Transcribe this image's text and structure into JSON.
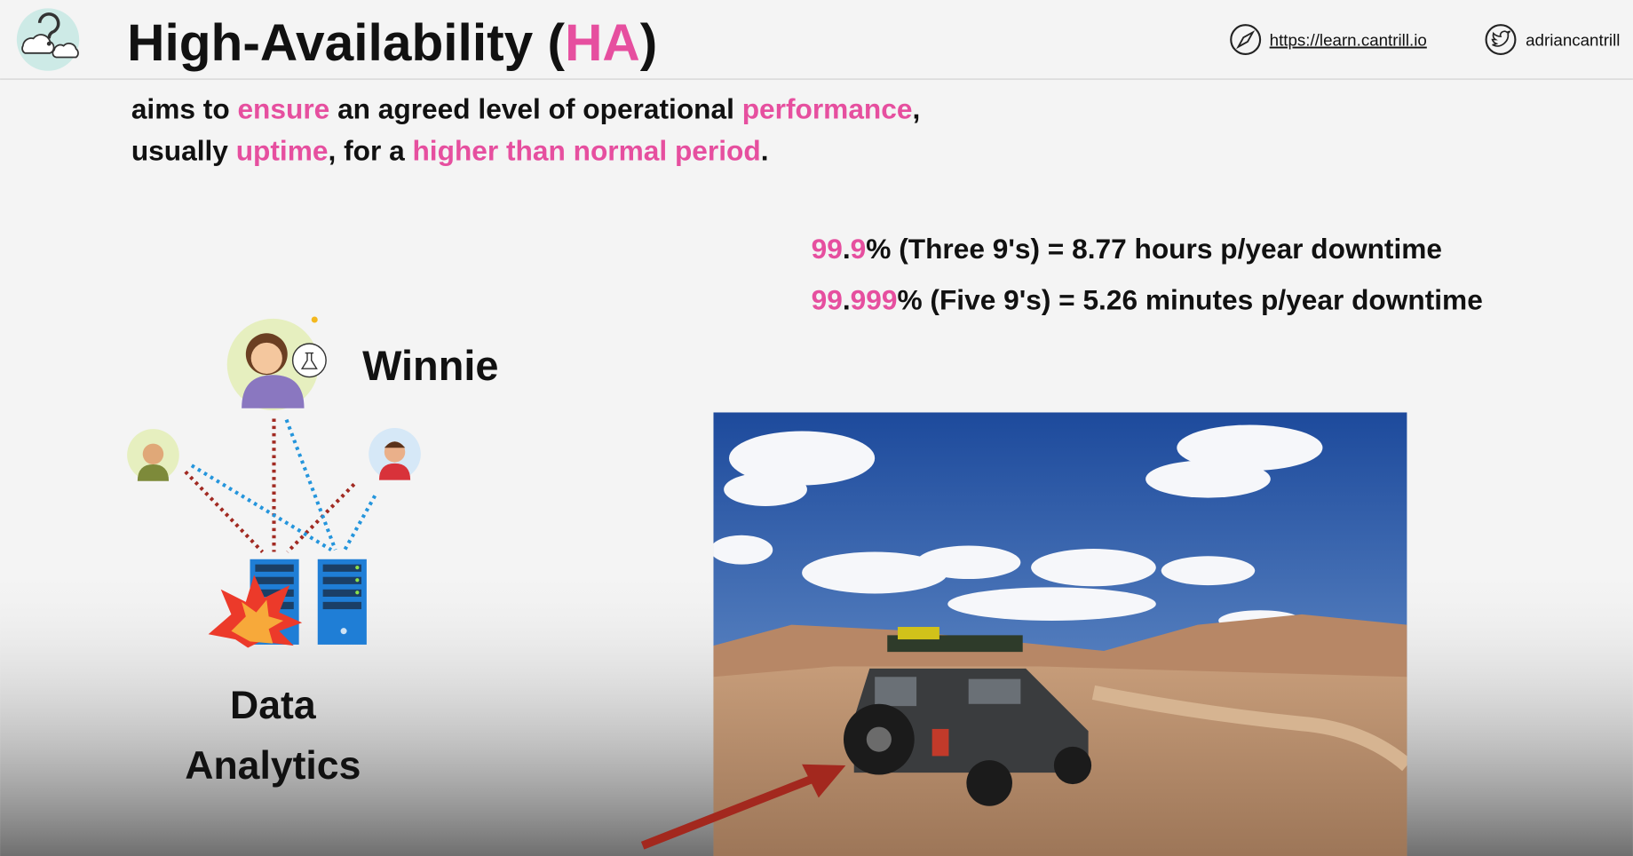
{
  "header": {
    "title": [
      {
        "text": "High-Availability (",
        "highlight": false
      },
      {
        "text": "HA",
        "highlight": true
      },
      {
        "text": ")",
        "highlight": false
      }
    ],
    "website": "https://learn.cantrill.io",
    "twitter": "adriancantrill"
  },
  "definition": {
    "lines": [
      [
        {
          "text": "aims to ",
          "highlight": false
        },
        {
          "text": "ensure",
          "highlight": true
        },
        {
          "text": " an agreed level of operational ",
          "highlight": false
        },
        {
          "text": "performance",
          "highlight": true
        },
        {
          "text": ",",
          "highlight": false
        }
      ],
      [
        {
          "text": "usually ",
          "highlight": false
        },
        {
          "text": "uptime",
          "highlight": true
        },
        {
          "text": ", for a ",
          "highlight": false
        },
        {
          "text": "higher than normal period",
          "highlight": true
        },
        {
          "text": ".",
          "highlight": false
        }
      ]
    ]
  },
  "availability": {
    "lines": [
      [
        {
          "text": "99",
          "highlight": true
        },
        {
          "text": ".",
          "highlight": false
        },
        {
          "text": "9",
          "highlight": true
        },
        {
          "text": "% (Three 9's) = 8.77 hours p/year downtime",
          "highlight": false
        }
      ],
      [
        {
          "text": "99",
          "highlight": true
        },
        {
          "text": ".",
          "highlight": false
        },
        {
          "text": "999",
          "highlight": true
        },
        {
          "text": "% (Five 9's) = 5.26 minutes p/year downtime",
          "highlight": false
        }
      ]
    ]
  },
  "diagram": {
    "user": "Winnie",
    "service": "Data Analytics"
  }
}
